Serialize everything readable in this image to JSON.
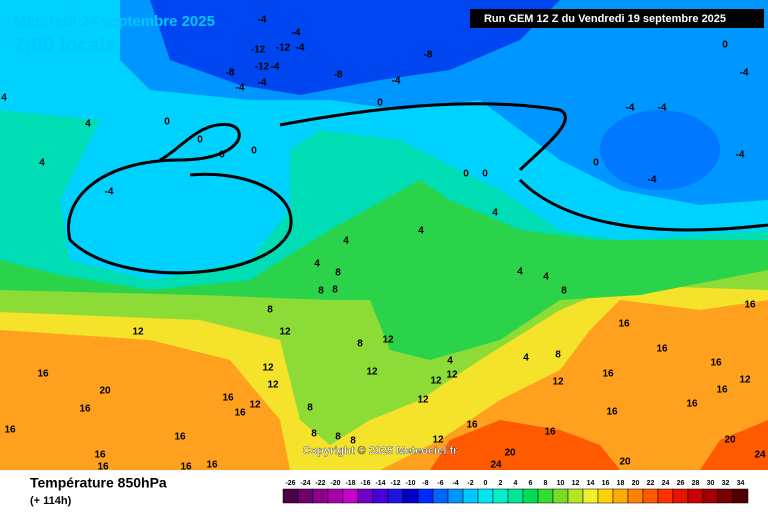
{
  "header": {
    "date": "Mercredi 24 septembre 2025",
    "time": "7:00 locale",
    "run": "Run GEM 12 Z du Vendredi 19 septembre 2025"
  },
  "copyright": "Copyright © 2025 Meteociel.fr",
  "footer": {
    "title": "Température 850hPa",
    "lead": "(+ 114h)"
  },
  "legend": {
    "ticks": [
      -26,
      -24,
      -22,
      -20,
      -18,
      -16,
      -14,
      -12,
      -10,
      -8,
      -6,
      -4,
      -2,
      0,
      2,
      4,
      6,
      8,
      10,
      12,
      14,
      16,
      18,
      20,
      22,
      24,
      26,
      28,
      30,
      32,
      34
    ],
    "colors": [
      "#4b0048",
      "#6e006e",
      "#8c008c",
      "#aa00aa",
      "#c800c8",
      "#6e00c8",
      "#4600dc",
      "#1e14dc",
      "#0000c8",
      "#0028ff",
      "#0064ff",
      "#0096ff",
      "#00c8ff",
      "#00e6f0",
      "#00f0c8",
      "#00e696",
      "#00dc5a",
      "#32dc32",
      "#78dc28",
      "#b4e628",
      "#f0f028",
      "#ffd200",
      "#ffaa00",
      "#ff8200",
      "#ff5a00",
      "#ff3200",
      "#e61400",
      "#c80000",
      "#a00000",
      "#780000",
      "#500000"
    ]
  },
  "map_labels": [
    -4,
    -4,
    -12,
    -12,
    -4,
    -12,
    -4,
    -8,
    -4,
    -4,
    -8,
    -8,
    -4,
    0,
    0,
    -4,
    -4,
    -4,
    -4,
    -4,
    0,
    0,
    0,
    0,
    0,
    0,
    0,
    -4,
    4,
    4,
    4,
    4,
    4,
    4,
    4,
    4,
    4,
    8,
    8,
    8,
    8,
    8,
    12,
    12,
    8,
    12,
    16,
    16,
    20,
    16,
    12,
    12,
    12,
    16,
    16,
    16,
    16,
    16,
    16,
    16,
    12,
    12,
    12,
    12,
    12,
    12,
    16,
    16,
    20,
    24,
    20,
    20,
    24,
    16,
    16,
    16,
    16,
    16,
    16,
    16,
    12,
    16,
    4,
    8,
    4,
    8,
    8,
    8,
    8
  ]
}
